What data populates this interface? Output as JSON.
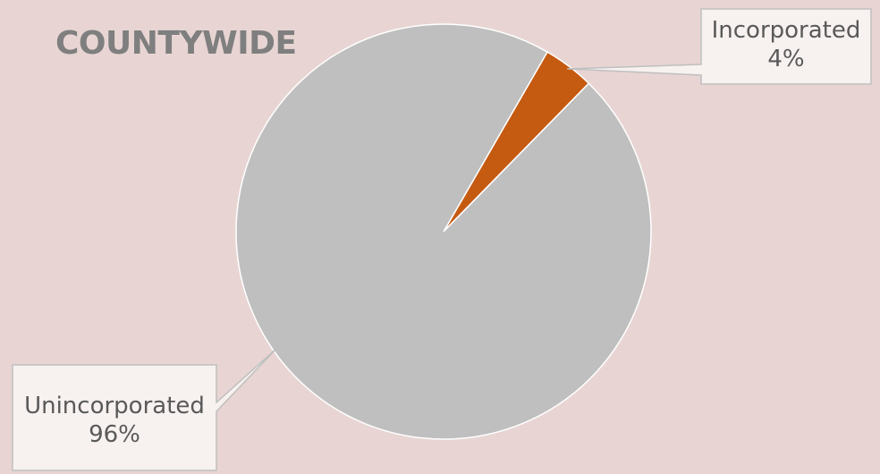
{
  "chart_data": {
    "type": "pie",
    "title": "COUNTYWIDE",
    "categories": [
      "Unincorporated",
      "Incorporated"
    ],
    "values": [
      96,
      4
    ],
    "labels": [
      "96%",
      "4%"
    ],
    "colors": {
      "Unincorporated": "#bfbfbf",
      "Incorporated": "#c55a11"
    },
    "legend": "none",
    "data_labels": "callouts"
  }
}
